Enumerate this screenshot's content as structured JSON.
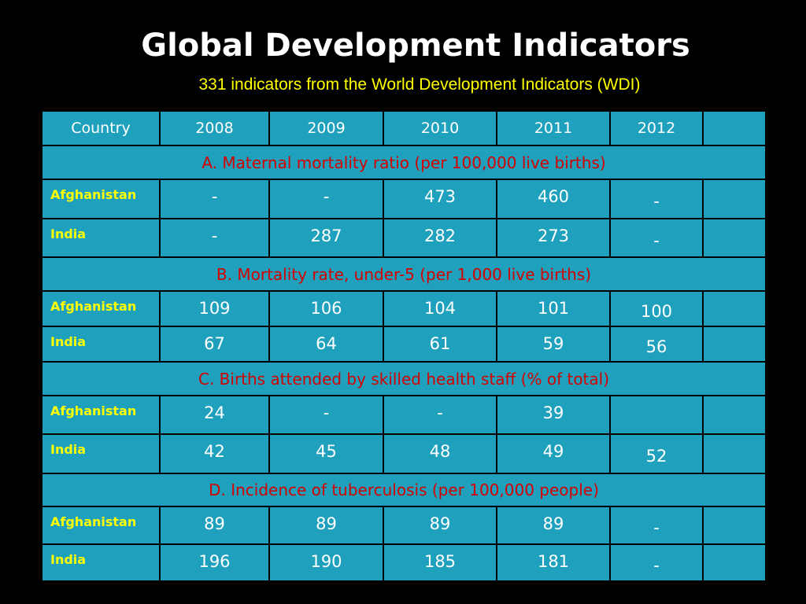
{
  "slide": {
    "title": "Global Development Indicators",
    "subtitle": "331 indicators from the World Development Indicators (WDI)"
  },
  "table": {
    "header": {
      "country": "Country",
      "years": [
        "2008",
        "2009",
        "2010",
        "2011",
        "2012"
      ],
      "extra": ""
    },
    "sections": [
      {
        "title": "A. Maternal mortality ratio (per 100,000 live births)",
        "rows": [
          {
            "country": "Afghanistan",
            "values": [
              "-",
              "-",
              "473",
              "460",
              "-"
            ]
          },
          {
            "country": "India",
            "values": [
              "-",
              "287",
              "282",
              "273",
              "-"
            ]
          }
        ]
      },
      {
        "title": "B. Mortality rate, under-5 (per 1,000 live births)",
        "rows": [
          {
            "country": "Afghanistan",
            "values": [
              "109",
              "106",
              "104",
              "101",
              "100"
            ]
          },
          {
            "country": "India",
            "values": [
              "67",
              "64",
              "61",
              "59",
              "56"
            ]
          }
        ]
      },
      {
        "title": "C. Births attended by skilled health staff (% of total)",
        "rows": [
          {
            "country": "Afghanistan",
            "values": [
              "24",
              "-",
              "-",
              "39",
              ""
            ]
          },
          {
            "country": "India",
            "values": [
              "42",
              "45",
              "48",
              "49",
              "52"
            ]
          }
        ]
      },
      {
        "title": "D. Incidence of tuberculosis (per 100,000 people)",
        "rows": [
          {
            "country": "Afghanistan",
            "values": [
              "89",
              "89",
              "89",
              "89",
              "-"
            ]
          },
          {
            "country": "India",
            "values": [
              "196",
              "190",
              "185",
              "181",
              "-"
            ]
          }
        ]
      }
    ]
  },
  "colors": {
    "background": "#000000",
    "title": "#ffffff",
    "subtitle": "#ffff00",
    "table_fill": "#1fa1bd",
    "section_title": "#d40000",
    "country": "#ffff00",
    "value": "#ffffff",
    "grid": "#000000"
  }
}
